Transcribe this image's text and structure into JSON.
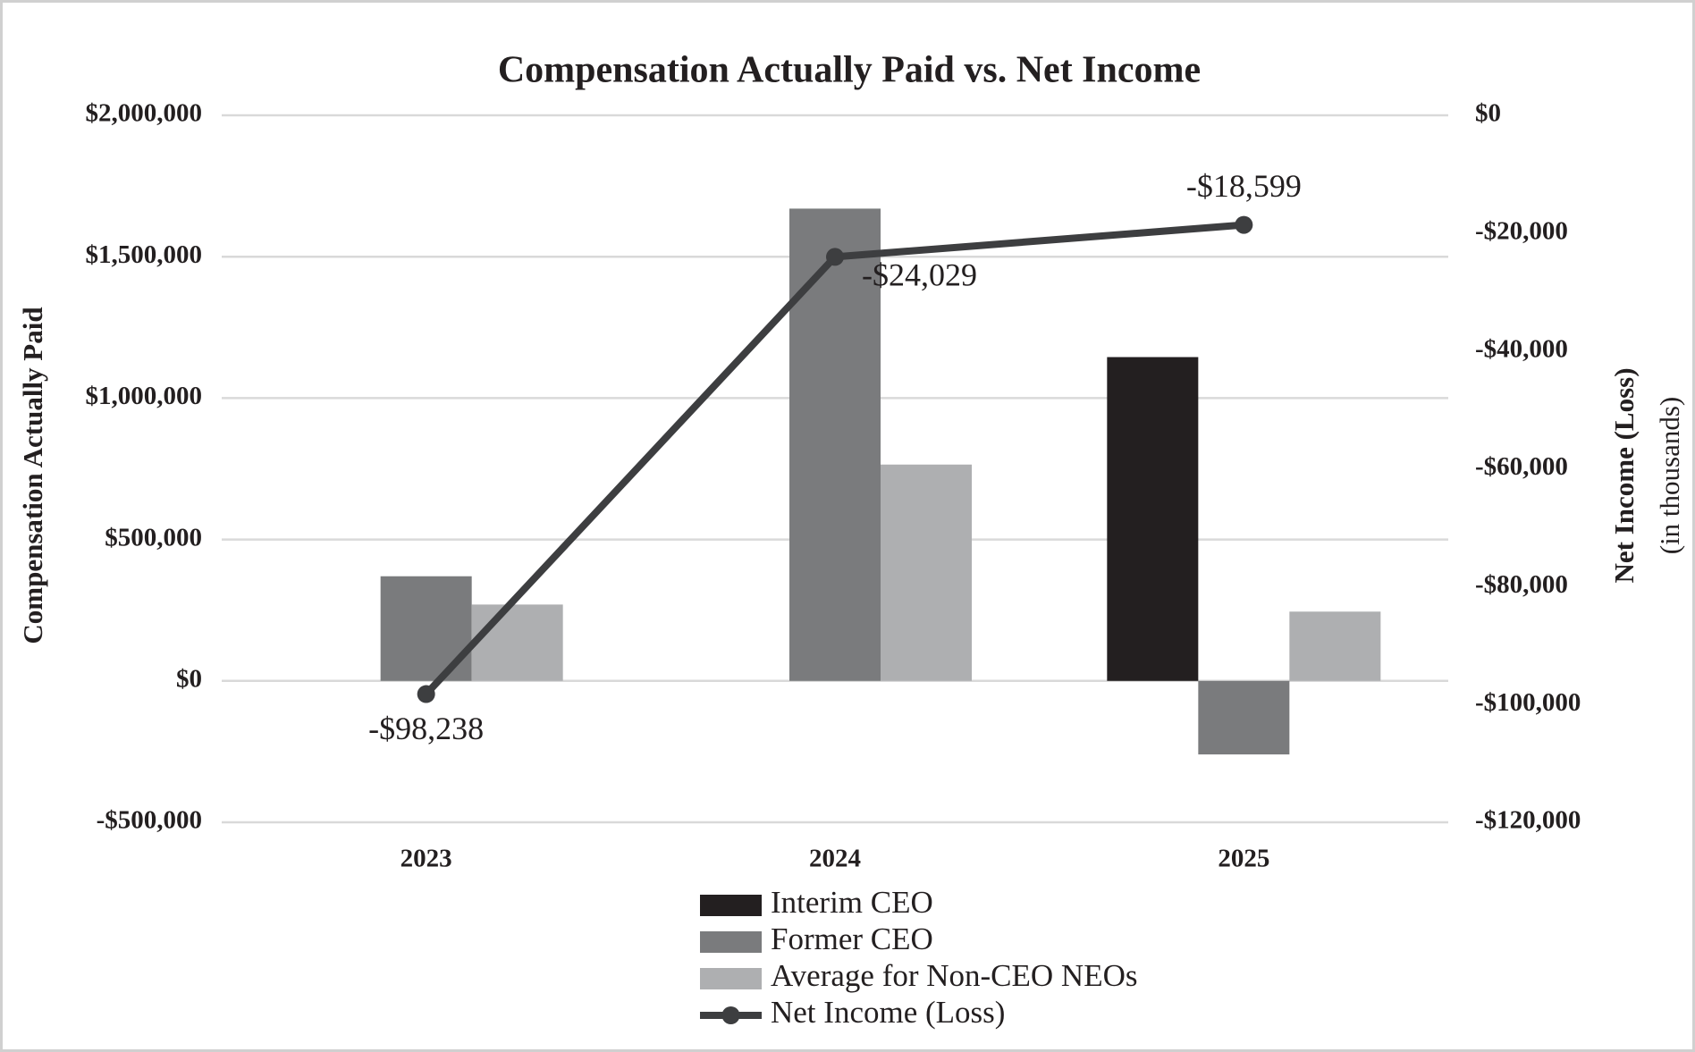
{
  "chart_data": {
    "type": "bar",
    "title": "Compensation Actually Paid vs. Net Income",
    "ylabel": "Compensation Actually Paid",
    "y2label": "Net Income (Loss)",
    "y2sublabel": "(in thousands)",
    "categories": [
      "2023",
      "2024",
      "2025"
    ],
    "series": [
      {
        "name": "Interim CEO",
        "type": "bar",
        "color": "#231f20",
        "values": [
          null,
          null,
          1145000
        ]
      },
      {
        "name": "Former CEO",
        "type": "bar",
        "color": "#7a7b7d",
        "values": [
          370000,
          1670000,
          -260000
        ]
      },
      {
        "name": "Average for Non-CEO NEOs",
        "type": "bar",
        "color": "#aeafb1",
        "values": [
          270000,
          765000,
          245000
        ]
      },
      {
        "name": "Net Income (Loss)",
        "type": "line",
        "axis": "y2",
        "color": "#3d3e40",
        "values": [
          -98238,
          -24029,
          -18599
        ],
        "value_labels": [
          "-$98,238",
          "-$24,029",
          "-$18,599"
        ]
      }
    ],
    "ylim": [
      -500000,
      2000000
    ],
    "yticks": [
      {
        "value": -500000,
        "label": "-$500,000"
      },
      {
        "value": 0,
        "label": "$0"
      },
      {
        "value": 500000,
        "label": "$500,000"
      },
      {
        "value": 1000000,
        "label": "$1,000,000"
      },
      {
        "value": 1500000,
        "label": "$1,500,000"
      },
      {
        "value": 2000000,
        "label": "$2,000,000"
      }
    ],
    "y2lim": [
      -120000,
      0
    ],
    "y2ticks": [
      {
        "value": -120000,
        "label": "-$120,000"
      },
      {
        "value": -100000,
        "label": "-$100,000"
      },
      {
        "value": -80000,
        "label": "-$80,000"
      },
      {
        "value": -60000,
        "label": "-$60,000"
      },
      {
        "value": -40000,
        "label": "-$40,000"
      },
      {
        "value": -20000,
        "label": "-$20,000"
      },
      {
        "value": 0,
        "label": "$0"
      }
    ],
    "grid": true,
    "legend": "bottom"
  }
}
